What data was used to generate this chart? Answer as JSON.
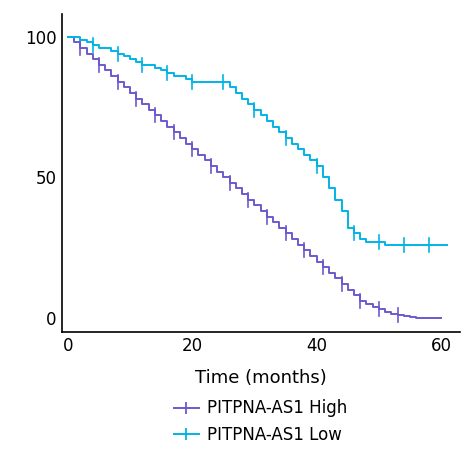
{
  "title": "",
  "xlabel": "Time (months)",
  "ylabel": "",
  "xlim": [
    -1,
    63
  ],
  "ylim": [
    -5,
    108
  ],
  "yticks": [
    0,
    50,
    100
  ],
  "xticks": [
    0,
    20,
    40,
    60
  ],
  "high_color": "#6b5acd",
  "low_color": "#00b4e6",
  "legend_labels": [
    "PITPNA-AS1 High",
    "PITPNA-AS1 Low"
  ],
  "high_events": [
    [
      0,
      100
    ],
    [
      1,
      98
    ],
    [
      2,
      96
    ],
    [
      3,
      94
    ],
    [
      4,
      92
    ],
    [
      5,
      90
    ],
    [
      6,
      88
    ],
    [
      7,
      86
    ],
    [
      8,
      84
    ],
    [
      9,
      82
    ],
    [
      10,
      80
    ],
    [
      11,
      78
    ],
    [
      12,
      76
    ],
    [
      13,
      74
    ],
    [
      14,
      72
    ],
    [
      15,
      70
    ],
    [
      16,
      68
    ],
    [
      17,
      66
    ],
    [
      18,
      64
    ],
    [
      19,
      62
    ],
    [
      20,
      60
    ],
    [
      21,
      58
    ],
    [
      22,
      56
    ],
    [
      23,
      54
    ],
    [
      24,
      52
    ],
    [
      25,
      50
    ],
    [
      26,
      48
    ],
    [
      27,
      46
    ],
    [
      28,
      44
    ],
    [
      29,
      42
    ],
    [
      30,
      40
    ],
    [
      31,
      38
    ],
    [
      32,
      36
    ],
    [
      33,
      34
    ],
    [
      34,
      32
    ],
    [
      35,
      30
    ],
    [
      36,
      28
    ],
    [
      37,
      26
    ],
    [
      38,
      24
    ],
    [
      39,
      22
    ],
    [
      40,
      20
    ],
    [
      41,
      18
    ],
    [
      42,
      16
    ],
    [
      43,
      14
    ],
    [
      44,
      12
    ],
    [
      45,
      10
    ],
    [
      46,
      8
    ],
    [
      47,
      6
    ],
    [
      48,
      5
    ],
    [
      49,
      4
    ],
    [
      50,
      3
    ],
    [
      51,
      2
    ],
    [
      52,
      1.5
    ],
    [
      53,
      1
    ],
    [
      54,
      0.5
    ],
    [
      55,
      0.2
    ],
    [
      56,
      0
    ],
    [
      60,
      0
    ]
  ],
  "low_events": [
    [
      0,
      100
    ],
    [
      1,
      100
    ],
    [
      2,
      99
    ],
    [
      3,
      98
    ],
    [
      4,
      97
    ],
    [
      5,
      96
    ],
    [
      6,
      96
    ],
    [
      7,
      95
    ],
    [
      8,
      94
    ],
    [
      9,
      93
    ],
    [
      10,
      92
    ],
    [
      11,
      91
    ],
    [
      12,
      90
    ],
    [
      13,
      90
    ],
    [
      14,
      89
    ],
    [
      15,
      88
    ],
    [
      16,
      87
    ],
    [
      17,
      86
    ],
    [
      18,
      86
    ],
    [
      19,
      85
    ],
    [
      20,
      84
    ],
    [
      21,
      84
    ],
    [
      22,
      84
    ],
    [
      23,
      84
    ],
    [
      24,
      84
    ],
    [
      25,
      84
    ],
    [
      26,
      82
    ],
    [
      27,
      80
    ],
    [
      28,
      78
    ],
    [
      29,
      76
    ],
    [
      30,
      74
    ],
    [
      31,
      72
    ],
    [
      32,
      70
    ],
    [
      33,
      68
    ],
    [
      34,
      66
    ],
    [
      35,
      64
    ],
    [
      36,
      62
    ],
    [
      37,
      60
    ],
    [
      38,
      58
    ],
    [
      39,
      56
    ],
    [
      40,
      54
    ],
    [
      41,
      50
    ],
    [
      42,
      46
    ],
    [
      43,
      42
    ],
    [
      44,
      38
    ],
    [
      45,
      32
    ],
    [
      46,
      30
    ],
    [
      47,
      28
    ],
    [
      48,
      27
    ],
    [
      49,
      27
    ],
    [
      50,
      27
    ],
    [
      51,
      26
    ],
    [
      52,
      26
    ],
    [
      53,
      26
    ],
    [
      54,
      26
    ],
    [
      55,
      26
    ],
    [
      56,
      26
    ],
    [
      57,
      26
    ],
    [
      58,
      26
    ],
    [
      59,
      26
    ],
    [
      60,
      26
    ],
    [
      61,
      26
    ]
  ],
  "censor_high_x": [
    2,
    5,
    8,
    11,
    14,
    17,
    20,
    23,
    26,
    29,
    32,
    35,
    38,
    41,
    44,
    47,
    50,
    53
  ],
  "censor_low_x": [
    4,
    8,
    12,
    16,
    20,
    25,
    30,
    35,
    40,
    46,
    50,
    54,
    58
  ]
}
